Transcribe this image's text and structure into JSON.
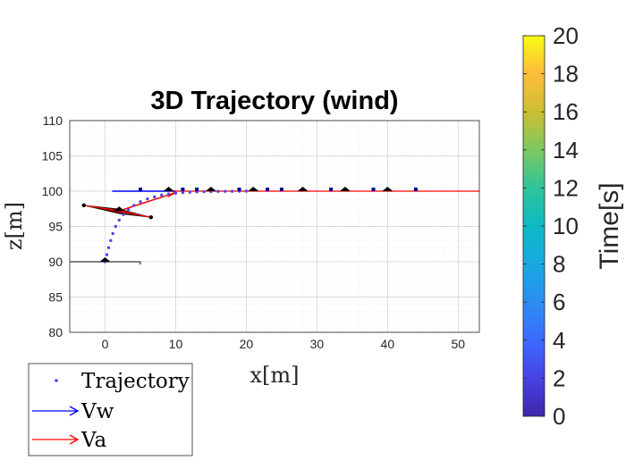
{
  "chart_data": {
    "type": "scatter",
    "title": "3D Trajectory (wind)",
    "xlabel": "x[m]",
    "ylabel": "z[m]",
    "xlim": [
      -5,
      53
    ],
    "ylim": [
      80,
      110
    ],
    "xticks": [
      0,
      10,
      20,
      30,
      40,
      50
    ],
    "yticks": [
      80,
      85,
      90,
      95,
      100,
      105,
      110
    ],
    "grid": true,
    "minor_grid": true,
    "legend_placement": "bottom-left outside",
    "legend": [
      "Trajectory",
      "Vw",
      "Va"
    ],
    "colorbar": {
      "label": "Time[s]",
      "range": [
        0,
        20
      ],
      "ticks": [
        0,
        2,
        4,
        6,
        8,
        10,
        12,
        14,
        16,
        18,
        20
      ],
      "colormap": "parula"
    },
    "series": [
      {
        "name": "Trajectory",
        "style": "dotted markers",
        "x": [
          0,
          0.25,
          0.5,
          0.8,
          1.1,
          1.5,
          2.0,
          2.6,
          3.3,
          4.1,
          5.0,
          6.0,
          7.0,
          8.0,
          9.0,
          10.0,
          11.0,
          12.0,
          13.0,
          14.0,
          15.0,
          16.0,
          17.0,
          18.0,
          19.0,
          20.0
        ],
        "z": [
          90.0,
          91.0,
          92.0,
          93.0,
          94.0,
          95.0,
          95.9,
          96.7,
          97.4,
          98.0,
          98.5,
          98.9,
          99.2,
          99.45,
          99.6,
          99.72,
          99.8,
          99.85,
          99.9,
          99.93,
          99.95,
          99.97,
          99.98,
          99.99,
          100.0,
          100.0
        ]
      }
    ],
    "wind_vector": {
      "name": "Vw",
      "color": "#0000ff",
      "x": [
        1,
        10
      ],
      "z": [
        100,
        100
      ]
    },
    "airspeed_vectors": {
      "name": "Va",
      "color": "#ff0000"
    },
    "flight_path_line": {
      "x": [
        10,
        53
      ],
      "z": [
        100,
        100
      ]
    },
    "aircraft_positions_x": [
      0,
      2,
      9,
      15,
      21,
      28,
      34,
      40
    ],
    "aircraft_positions_z": [
      90,
      97.2,
      100,
      100,
      100,
      100,
      100,
      100
    ]
  },
  "colors": {
    "wind": "#0000ff",
    "airspeed": "#ff0000",
    "trajectory": "#4a4ae6",
    "aircraft": "#000000"
  }
}
